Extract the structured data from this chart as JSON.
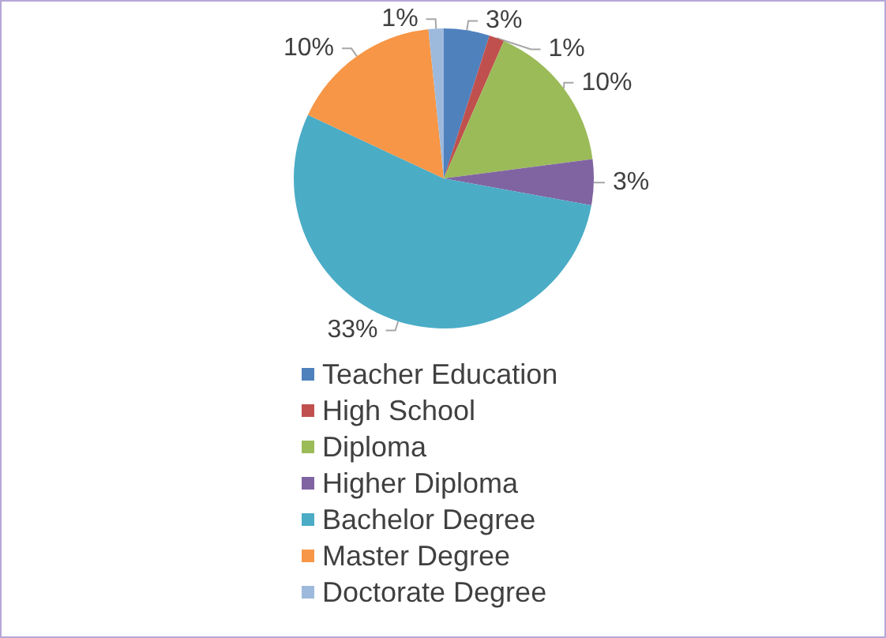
{
  "chart_data": {
    "type": "pie",
    "categories": [
      "Teacher Education",
      "High School",
      "Diploma",
      "Higher Diploma",
      "Bachelor Degree",
      "Master Degree",
      "Doctorate Degree"
    ],
    "values": [
      3,
      1,
      10,
      3,
      33,
      10,
      1
    ],
    "colors": [
      "#4f81bd",
      "#c0504d",
      "#9bbb59",
      "#8064a2",
      "#4bacc6",
      "#f79646",
      "#9db9dc"
    ],
    "value_labels": [
      "3%",
      "1%",
      "10%",
      "3%",
      "33%",
      "10%",
      "1%"
    ],
    "legend": "bottom"
  }
}
